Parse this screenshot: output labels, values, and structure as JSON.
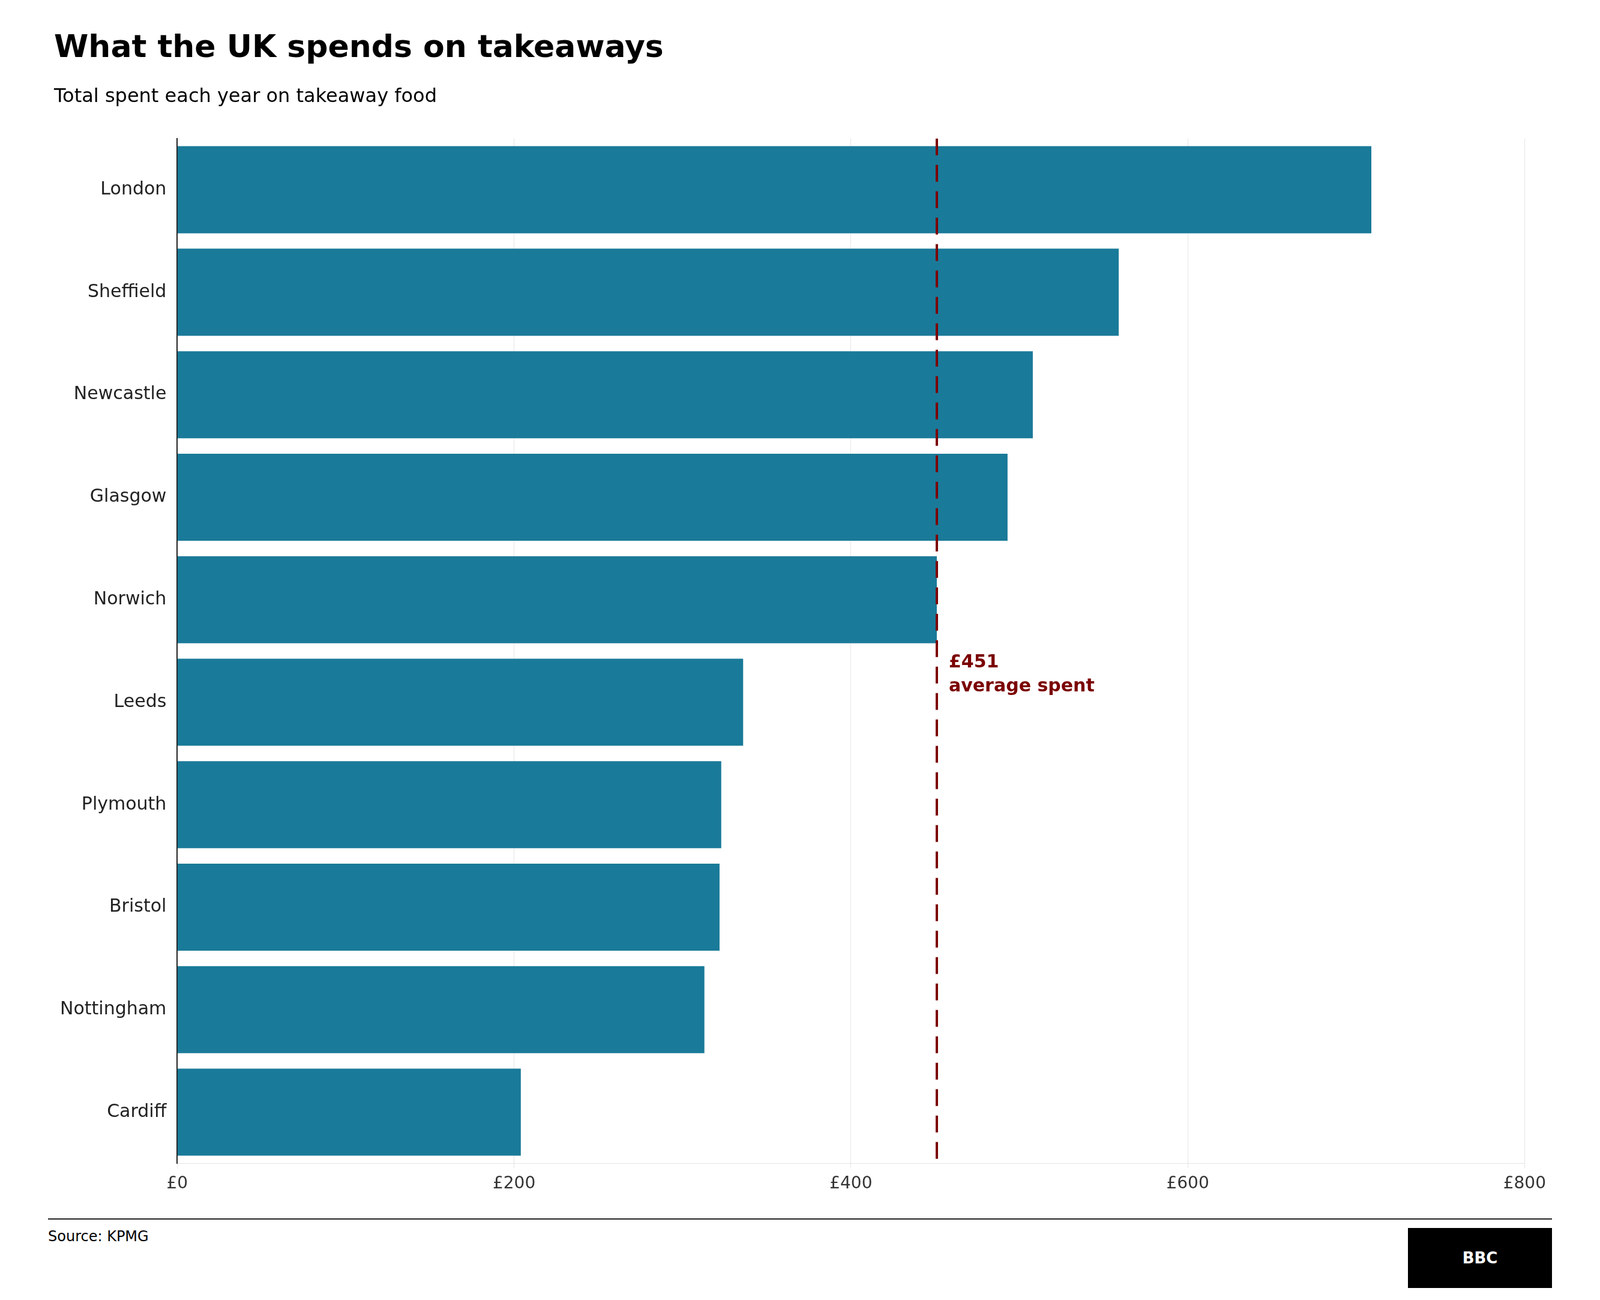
{
  "chart_data": {
    "type": "bar",
    "orientation": "horizontal",
    "title": "What the UK spends on takeaways",
    "subtitle": "Total spent each year on takeaway food",
    "source": "Source: KPMG",
    "logo": "BBC",
    "categories": [
      "London",
      "Sheffield",
      "Newcastle",
      "Glasgow",
      "Norwich",
      "Leeds",
      "Plymouth",
      "Bristol",
      "Nottingham",
      "Cardiff"
    ],
    "values": [
      709,
      559,
      508,
      493,
      451,
      336,
      323,
      322,
      313,
      204
    ],
    "color": "#1a7a99",
    "xlim": [
      0,
      800
    ],
    "xticks": [
      {
        "value": 0,
        "label": "£0"
      },
      {
        "value": 200,
        "label": "£200"
      },
      {
        "value": 400,
        "label": "£400"
      },
      {
        "value": 600,
        "label": "£600"
      },
      {
        "value": 800,
        "label": "£800"
      }
    ],
    "grid": true,
    "annotations": [
      {
        "type": "vline",
        "x": 451,
        "text": [
          "£451",
          "average spent"
        ],
        "color": "#7b0000"
      }
    ]
  }
}
